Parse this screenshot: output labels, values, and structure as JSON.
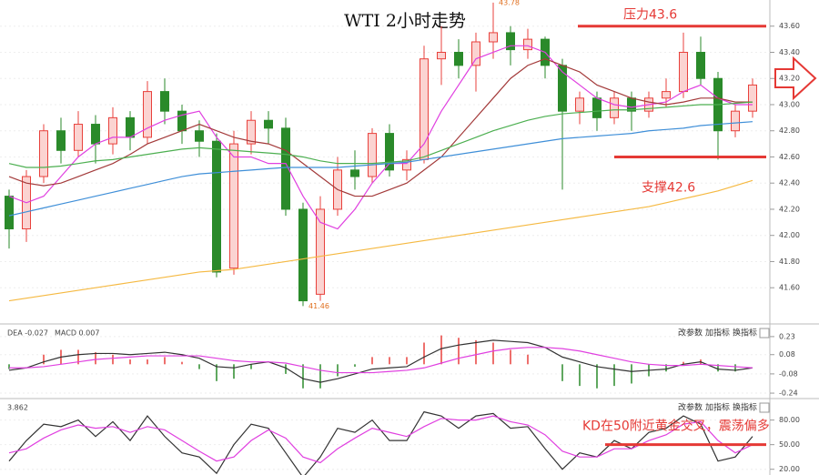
{
  "chart_data": [
    {
      "type": "candlestick",
      "title": "WTI 2小时走势",
      "open": [
        42.3,
        42.05,
        42.45,
        42.8,
        42.65,
        42.85,
        42.7,
        42.9,
        42.75,
        43.1,
        42.95,
        42.8,
        42.72,
        41.75,
        42.7,
        42.88,
        42.82,
        42.2,
        41.55,
        42.2,
        42.5,
        42.45,
        42.78,
        42.5,
        42.58,
        43.35,
        43.4,
        43.3,
        43.48,
        43.55,
        43.42,
        43.5,
        43.3,
        42.95,
        43.05,
        42.9,
        43.05,
        42.95,
        43.05,
        43.1,
        43.4,
        43.2,
        42.8,
        42.95
      ],
      "high": [
        42.35,
        42.5,
        42.85,
        42.9,
        42.95,
        42.92,
        42.98,
        42.95,
        43.18,
        43.2,
        43.0,
        42.88,
        42.78,
        42.8,
        42.95,
        42.95,
        42.9,
        42.25,
        42.3,
        42.6,
        42.65,
        42.82,
        42.85,
        42.65,
        43.45,
        43.6,
        43.5,
        43.55,
        43.78,
        43.6,
        43.58,
        43.52,
        43.35,
        43.1,
        43.1,
        43.1,
        43.1,
        43.1,
        43.2,
        43.55,
        43.52,
        43.25,
        43.0,
        43.2
      ],
      "low": [
        41.9,
        41.95,
        42.4,
        42.55,
        42.6,
        42.55,
        42.62,
        42.65,
        42.7,
        42.85,
        42.7,
        42.6,
        41.68,
        41.7,
        42.62,
        42.7,
        42.15,
        41.46,
        41.5,
        42.15,
        42.35,
        42.4,
        42.45,
        42.42,
        42.55,
        43.15,
        43.2,
        43.1,
        43.35,
        43.3,
        43.35,
        43.2,
        42.35,
        42.85,
        42.8,
        42.85,
        42.8,
        42.9,
        42.98,
        43.05,
        43.15,
        42.58,
        42.75,
        42.9
      ],
      "close": [
        42.05,
        42.45,
        42.8,
        42.65,
        42.85,
        42.7,
        42.9,
        42.75,
        43.1,
        42.95,
        42.8,
        42.72,
        41.72,
        42.7,
        42.88,
        42.82,
        42.2,
        41.5,
        42.2,
        42.5,
        42.45,
        42.78,
        42.5,
        42.58,
        43.35,
        43.4,
        43.3,
        43.48,
        43.55,
        43.42,
        43.5,
        43.3,
        42.95,
        43.05,
        42.9,
        43.05,
        42.95,
        43.05,
        43.1,
        43.4,
        43.2,
        42.8,
        42.95,
        43.15
      ],
      "up_color": "#e8413c",
      "down_color": "#2a8a2a",
      "lines": [
        {
          "color": "#e040e0",
          "values": [
            42.3,
            42.25,
            42.3,
            42.45,
            42.6,
            42.7,
            42.75,
            42.75,
            42.82,
            42.88,
            42.92,
            42.95,
            42.75,
            42.6,
            42.6,
            42.55,
            42.55,
            42.3,
            42.1,
            42.05,
            42.2,
            42.4,
            42.55,
            42.55,
            42.7,
            42.95,
            43.15,
            43.35,
            43.4,
            43.45,
            43.45,
            43.4,
            43.25,
            43.15,
            43.05,
            43.0,
            42.98,
            43.0,
            43.02,
            43.1,
            43.15,
            43.05,
            43.0,
            43.0
          ]
        },
        {
          "color": "#a33a3a",
          "values": [
            42.45,
            42.4,
            42.38,
            42.4,
            42.45,
            42.5,
            42.55,
            42.62,
            42.7,
            42.75,
            42.8,
            42.85,
            42.8,
            42.75,
            42.72,
            42.7,
            42.65,
            42.55,
            42.45,
            42.35,
            42.3,
            42.3,
            42.35,
            42.4,
            42.5,
            42.6,
            42.75,
            42.9,
            43.05,
            43.2,
            43.3,
            43.35,
            43.3,
            43.25,
            43.15,
            43.1,
            43.05,
            43.02,
            43.0,
            43.02,
            43.05,
            43.05,
            43.02,
            43.02
          ]
        },
        {
          "color": "#4caf50",
          "values": [
            42.55,
            42.52,
            42.52,
            42.53,
            42.55,
            42.57,
            42.58,
            42.6,
            42.62,
            42.64,
            42.66,
            42.67,
            42.66,
            42.65,
            42.64,
            42.63,
            42.62,
            42.6,
            42.57,
            42.55,
            42.55,
            42.55,
            42.56,
            42.57,
            42.6,
            42.65,
            42.7,
            42.75,
            42.8,
            42.84,
            42.88,
            42.91,
            42.93,
            42.94,
            42.95,
            42.96,
            42.96,
            42.97,
            42.98,
            42.99,
            43.0,
            43.0,
            43.01,
            43.02
          ]
        },
        {
          "color": "#3f8fd8",
          "values": [
            42.15,
            42.18,
            42.21,
            42.24,
            42.27,
            42.3,
            42.33,
            42.36,
            42.39,
            42.42,
            42.45,
            42.47,
            42.48,
            42.49,
            42.5,
            42.51,
            42.52,
            42.52,
            42.52,
            42.52,
            42.53,
            42.54,
            42.55,
            42.56,
            42.58,
            42.6,
            42.62,
            42.64,
            42.66,
            42.68,
            42.7,
            42.72,
            42.74,
            42.75,
            42.76,
            42.77,
            42.78,
            42.8,
            42.81,
            42.82,
            42.84,
            42.85,
            42.86,
            42.87
          ]
        },
        {
          "color": "#f5b942",
          "values": [
            41.5,
            41.52,
            41.54,
            41.56,
            41.58,
            41.6,
            41.62,
            41.64,
            41.66,
            41.68,
            41.7,
            41.72,
            41.73,
            41.74,
            41.76,
            41.78,
            41.8,
            41.82,
            41.84,
            41.86,
            41.88,
            41.9,
            41.92,
            41.94,
            41.96,
            41.98,
            42.0,
            42.02,
            42.04,
            42.06,
            42.08,
            42.1,
            42.12,
            42.14,
            42.16,
            42.18,
            42.2,
            42.22,
            42.25,
            42.28,
            42.31,
            42.34,
            42.38,
            42.42
          ]
        }
      ],
      "levels": [
        {
          "text": "压力43.6",
          "value": 43.6,
          "color": "#e53935"
        },
        {
          "text": "支撑42.6",
          "value": 42.6,
          "color": "#e53935"
        }
      ],
      "high_label": {
        "value": 43.78,
        "label": "43.78"
      },
      "low_label": {
        "value": 41.46,
        "label": "41.46"
      },
      "ylim": [
        41.33,
        43.8
      ],
      "yticks": [
        {
          "value": 41.6,
          "label": "41.60"
        },
        {
          "value": 41.8,
          "label": "41.80"
        },
        {
          "value": 42.0,
          "label": "42.00"
        },
        {
          "value": 42.2,
          "label": "42.20"
        },
        {
          "value": 42.4,
          "label": "42.40"
        },
        {
          "value": 42.6,
          "label": "42.60"
        },
        {
          "value": 42.8,
          "label": "42.80"
        },
        {
          "value": 43.0,
          "label": "43.00"
        },
        {
          "value": 43.2,
          "label": "43.20"
        },
        {
          "value": 43.4,
          "label": "43.40"
        },
        {
          "value": 43.6,
          "label": "43.60"
        }
      ]
    },
    {
      "type": "macd",
      "header": [
        "DEA -0.027",
        "MACD 0.007"
      ],
      "buttons": [
        "改参数",
        "加指标",
        "换指标"
      ],
      "hist": {
        "up_color": "#e8413c",
        "down_color": "#2a8a2a",
        "values": [
          -0.04,
          0.0,
          0.08,
          0.12,
          0.12,
          0.1,
          0.08,
          0.04,
          0.04,
          0.06,
          0.02,
          -0.04,
          -0.14,
          -0.12,
          -0.04,
          0.0,
          -0.08,
          -0.2,
          -0.2,
          -0.1,
          -0.02,
          0.06,
          0.06,
          0.06,
          0.18,
          0.24,
          0.22,
          0.2,
          0.18,
          0.12,
          0.08,
          0.0,
          -0.14,
          -0.18,
          -0.2,
          -0.18,
          -0.16,
          -0.1,
          -0.06,
          0.02,
          0.04,
          -0.06,
          -0.06,
          0.0
        ]
      },
      "lines": [
        {
          "color": "#333333",
          "values": [
            -0.05,
            -0.03,
            0.02,
            0.06,
            0.08,
            0.09,
            0.09,
            0.08,
            0.09,
            0.1,
            0.08,
            0.05,
            -0.02,
            -0.03,
            0.0,
            0.02,
            -0.03,
            -0.12,
            -0.15,
            -0.12,
            -0.08,
            -0.04,
            -0.03,
            -0.02,
            0.06,
            0.13,
            0.16,
            0.18,
            0.2,
            0.19,
            0.18,
            0.14,
            0.06,
            0.02,
            -0.02,
            -0.04,
            -0.06,
            -0.05,
            -0.04,
            0.0,
            0.02,
            -0.04,
            -0.05,
            -0.03
          ]
        },
        {
          "color": "#e040e0",
          "values": [
            -0.03,
            -0.03,
            -0.02,
            0.0,
            0.02,
            0.04,
            0.05,
            0.06,
            0.07,
            0.07,
            0.07,
            0.07,
            0.05,
            0.03,
            0.02,
            0.02,
            0.01,
            -0.02,
            -0.05,
            -0.07,
            -0.07,
            -0.07,
            -0.06,
            -0.05,
            -0.03,
            0.01,
            0.05,
            0.08,
            0.11,
            0.13,
            0.14,
            0.14,
            0.13,
            0.11,
            0.08,
            0.05,
            0.02,
            0.0,
            -0.01,
            -0.01,
            0.0,
            -0.01,
            -0.02,
            -0.03
          ]
        }
      ],
      "ylim": [
        -0.285,
        0.32
      ],
      "yticks": [
        -0.24,
        -0.08,
        0.08,
        0.23
      ]
    },
    {
      "type": "kd",
      "header": "3.862",
      "buttons": [
        "改参数",
        "加指标",
        "换指标"
      ],
      "lines": [
        {
          "color": "#333333",
          "values": [
            30,
            55,
            75,
            72,
            80,
            60,
            78,
            55,
            85,
            60,
            40,
            35,
            15,
            50,
            75,
            70,
            40,
            10,
            35,
            70,
            65,
            80,
            55,
            55,
            90,
            85,
            70,
            85,
            88,
            70,
            72,
            45,
            20,
            40,
            35,
            55,
            45,
            65,
            70,
            85,
            75,
            30,
            35,
            60
          ]
        },
        {
          "color": "#e040e0",
          "values": [
            40,
            45,
            58,
            68,
            74,
            70,
            72,
            65,
            72,
            68,
            55,
            42,
            30,
            35,
            55,
            68,
            58,
            35,
            28,
            45,
            58,
            70,
            65,
            60,
            72,
            82,
            80,
            80,
            85,
            78,
            74,
            62,
            42,
            35,
            35,
            45,
            45,
            55,
            62,
            75,
            78,
            55,
            40,
            50
          ]
        }
      ],
      "annotation": {
        "text": "KD在50附近黄金交叉，震荡偏多",
        "value": 50,
        "color": "#e53935"
      },
      "ylim": [
        13,
        104
      ],
      "yticks": [
        {
          "value": 20,
          "label": "20.00"
        },
        {
          "value": 50,
          "label": "50.00"
        },
        {
          "value": 80,
          "label": "80.00"
        }
      ]
    }
  ]
}
